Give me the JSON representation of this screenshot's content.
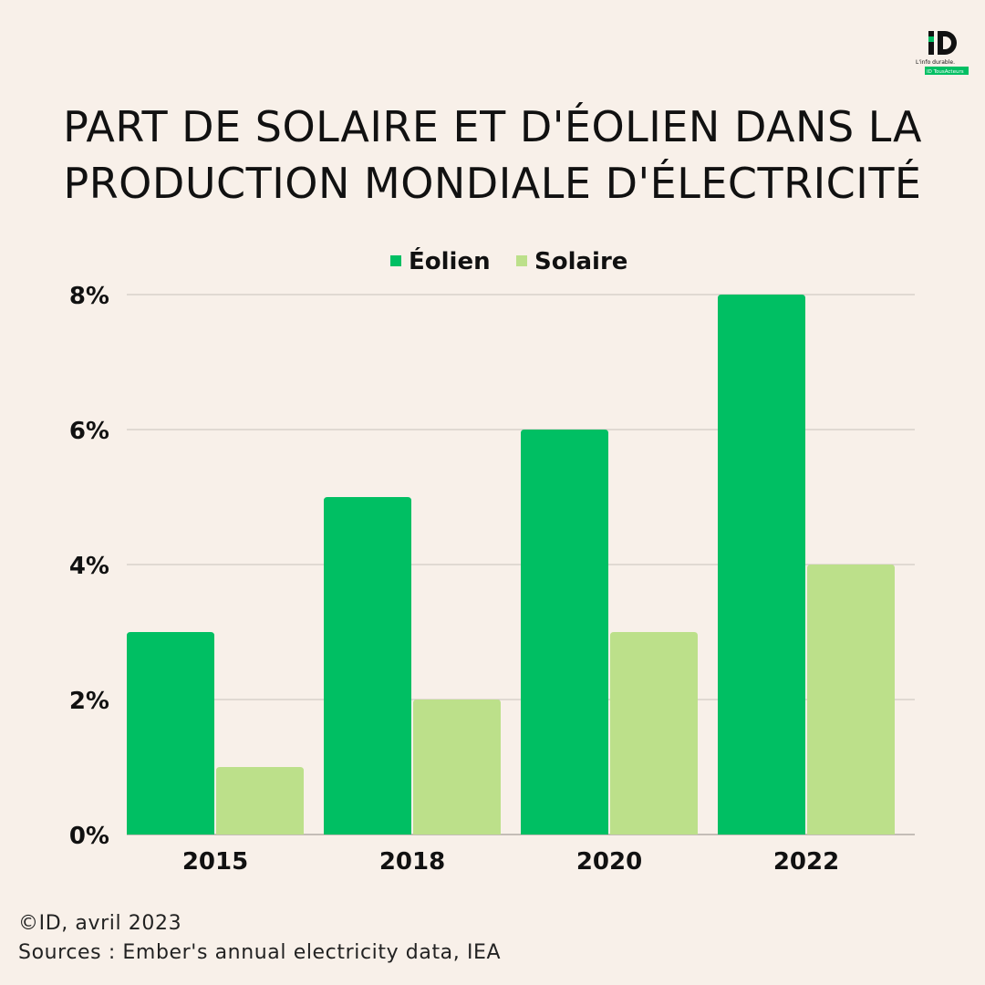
{
  "brand": {
    "logo_letters": "ID",
    "tagline_line1": "L'info durable.",
    "tagline_line2": "ID TousActeurs"
  },
  "title_line1": "PART DE SOLAIRE ET D'ÉOLIEN DANS LA",
  "title_line2": "PRODUCTION MONDIALE D'ÉLECTRICITÉ",
  "colors": {
    "background": "#f8f0e9",
    "eolien": "#00bf63",
    "solaire": "#bce08a",
    "grid": "#c9c2bb",
    "text": "#111111"
  },
  "chart_data": {
    "type": "bar",
    "title": "PART DE SOLAIRE ET D'ÉOLIEN DANS LA PRODUCTION MONDIALE D'ÉLECTRICITÉ",
    "categories": [
      "2015",
      "2018",
      "2020",
      "2022"
    ],
    "series": [
      {
        "name": "Éolien",
        "values": [
          3,
          5,
          6,
          8
        ]
      },
      {
        "name": "Solaire",
        "values": [
          1,
          2,
          3,
          4
        ]
      }
    ],
    "yticks": [
      0,
      2,
      4,
      6,
      8
    ],
    "ytick_labels": [
      "0%",
      "2%",
      "4%",
      "6%",
      "8%"
    ],
    "ylim": [
      0,
      8
    ],
    "xlabel": "",
    "ylabel": "",
    "grid": true,
    "legend_position": "top-center"
  },
  "footer": {
    "credit": "©ID, avril 2023",
    "sources": "Sources : Ember's annual electricity data, IEA"
  }
}
